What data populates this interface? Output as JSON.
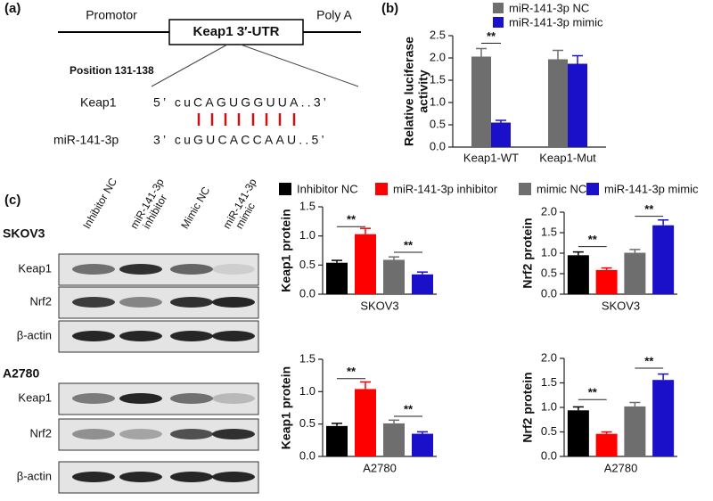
{
  "panel_a": {
    "label": "(a)",
    "promotor": "Promotor",
    "utr": "Keap1 3′-UTR",
    "polya": "Poly A",
    "position": "Position 131-138",
    "rows": [
      {
        "name": "Keap1",
        "seq": "5’ cuCAGUGGUUA..3’"
      },
      {
        "name": "miR-141-3p",
        "seq": "3’ cuGUCACCAAU..5’"
      }
    ]
  },
  "panel_b_label": "(b)",
  "panel_c": {
    "label": "(c)",
    "lanes": [
      [
        "Inhibitor NC"
      ],
      [
        "miR-141-3p",
        "inhibitor"
      ],
      [
        "Mimic NC"
      ],
      [
        "miR-141-3p",
        "mimic"
      ]
    ],
    "cell_lines": [
      {
        "name": "SKOV3",
        "rows": [
          "Keap1",
          "Nrf2",
          "β-actin"
        ]
      },
      {
        "name": "A2780",
        "rows": [
          "Keap1",
          "Nrf2",
          "β-actin"
        ]
      }
    ],
    "legend": [
      {
        "name": "Inhibitor NC",
        "color": "#000000"
      },
      {
        "name": "miR-141-3p inhibitor",
        "color": "#ff0000"
      },
      {
        "name": "mimic NC",
        "color": "#6e6e6e"
      },
      {
        "name": "miR-141-3p mimic",
        "color": "#1a10c9"
      }
    ]
  },
  "chart_data": [
    {
      "type": "bar",
      "categories": [
        "Keap1-WT",
        "Keap1-Mut"
      ],
      "series": [
        {
          "name": "miR-141-3p NC",
          "color": "#6e6e6e",
          "values": [
            2.03,
            1.97
          ],
          "errors": [
            0.18,
            0.2
          ]
        },
        {
          "name": "miR-141-3p mimic",
          "color": "#1a10c9",
          "values": [
            0.55,
            1.87
          ],
          "errors": [
            0.05,
            0.18
          ]
        }
      ],
      "ylabel": [
        "Relative luciferase",
        "activity"
      ],
      "ylim": [
        0,
        2.5
      ],
      "yticks": [
        {
          "value": 0,
          "label": "0.0"
        },
        0.5,
        {
          "value": 1,
          "label": "1.0"
        },
        1.5,
        {
          "value": 2,
          "label": "2.0"
        },
        2.5
      ],
      "significance": [
        {
          "label": "**",
          "y": 2.33,
          "bars": [
            0,
            1
          ]
        }
      ]
    },
    {
      "type": "bar",
      "xlabel": "SKOV3",
      "ylabel": [
        "Keap1 protein"
      ],
      "values": [
        0.54,
        1.03,
        0.59,
        0.34
      ],
      "errors": [
        0.04,
        0.1,
        0.05,
        0.04
      ],
      "ylim": [
        0,
        1.5
      ],
      "yticks": [
        {
          "value": 0,
          "label": "0.0"
        },
        0.5,
        {
          "value": 1,
          "label": "1.0"
        },
        1.5
      ],
      "significance": [
        {
          "label": "**",
          "y": 1.16,
          "bars": [
            0,
            1
          ]
        },
        {
          "label": "**",
          "y": 0.72,
          "bars": [
            2,
            3
          ]
        }
      ]
    },
    {
      "type": "bar",
      "xlabel": "SKOV3",
      "ylabel": [
        "Nrf2 protein"
      ],
      "values": [
        0.95,
        0.59,
        1.01,
        1.68
      ],
      "errors": [
        0.08,
        0.05,
        0.08,
        0.13
      ],
      "ylim": [
        0,
        2
      ],
      "yticks": [
        {
          "value": 0,
          "label": "0.0"
        },
        0.5,
        {
          "value": 1,
          "label": "1.0"
        },
        1.5,
        {
          "value": 2,
          "label": "2.0"
        }
      ],
      "significance": [
        {
          "label": "**",
          "y": 1.16,
          "bars": [
            0,
            1
          ]
        },
        {
          "label": "**",
          "y": 1.9,
          "bars": [
            2,
            3
          ]
        }
      ]
    },
    {
      "type": "bar",
      "xlabel": "A2780",
      "ylabel": [
        "Keap1 protein"
      ],
      "values": [
        0.47,
        1.04,
        0.51,
        0.35
      ],
      "errors": [
        0.04,
        0.11,
        0.05,
        0.03
      ],
      "ylim": [
        0,
        1.5
      ],
      "yticks": [
        {
          "value": 0,
          "label": "0.0"
        },
        0.5,
        {
          "value": 1,
          "label": "1.0"
        },
        1.5
      ],
      "significance": [
        {
          "label": "**",
          "y": 1.2,
          "bars": [
            0,
            1
          ]
        },
        {
          "label": "**",
          "y": 0.62,
          "bars": [
            2,
            3
          ]
        }
      ]
    },
    {
      "type": "bar",
      "xlabel": "A2780",
      "ylabel": [
        "Nrf2 protein"
      ],
      "values": [
        0.94,
        0.46,
        1.02,
        1.56
      ],
      "errors": [
        0.07,
        0.04,
        0.08,
        0.12
      ],
      "ylim": [
        0,
        2
      ],
      "yticks": [
        {
          "value": 0,
          "label": "0.0"
        },
        0.5,
        {
          "value": 1,
          "label": "1.0"
        },
        1.5,
        {
          "value": 2,
          "label": "2.0"
        }
      ],
      "significance": [
        {
          "label": "**",
          "y": 1.16,
          "bars": [
            0,
            1
          ]
        },
        {
          "label": "**",
          "y": 1.8,
          "bars": [
            2,
            3
          ]
        }
      ]
    }
  ]
}
